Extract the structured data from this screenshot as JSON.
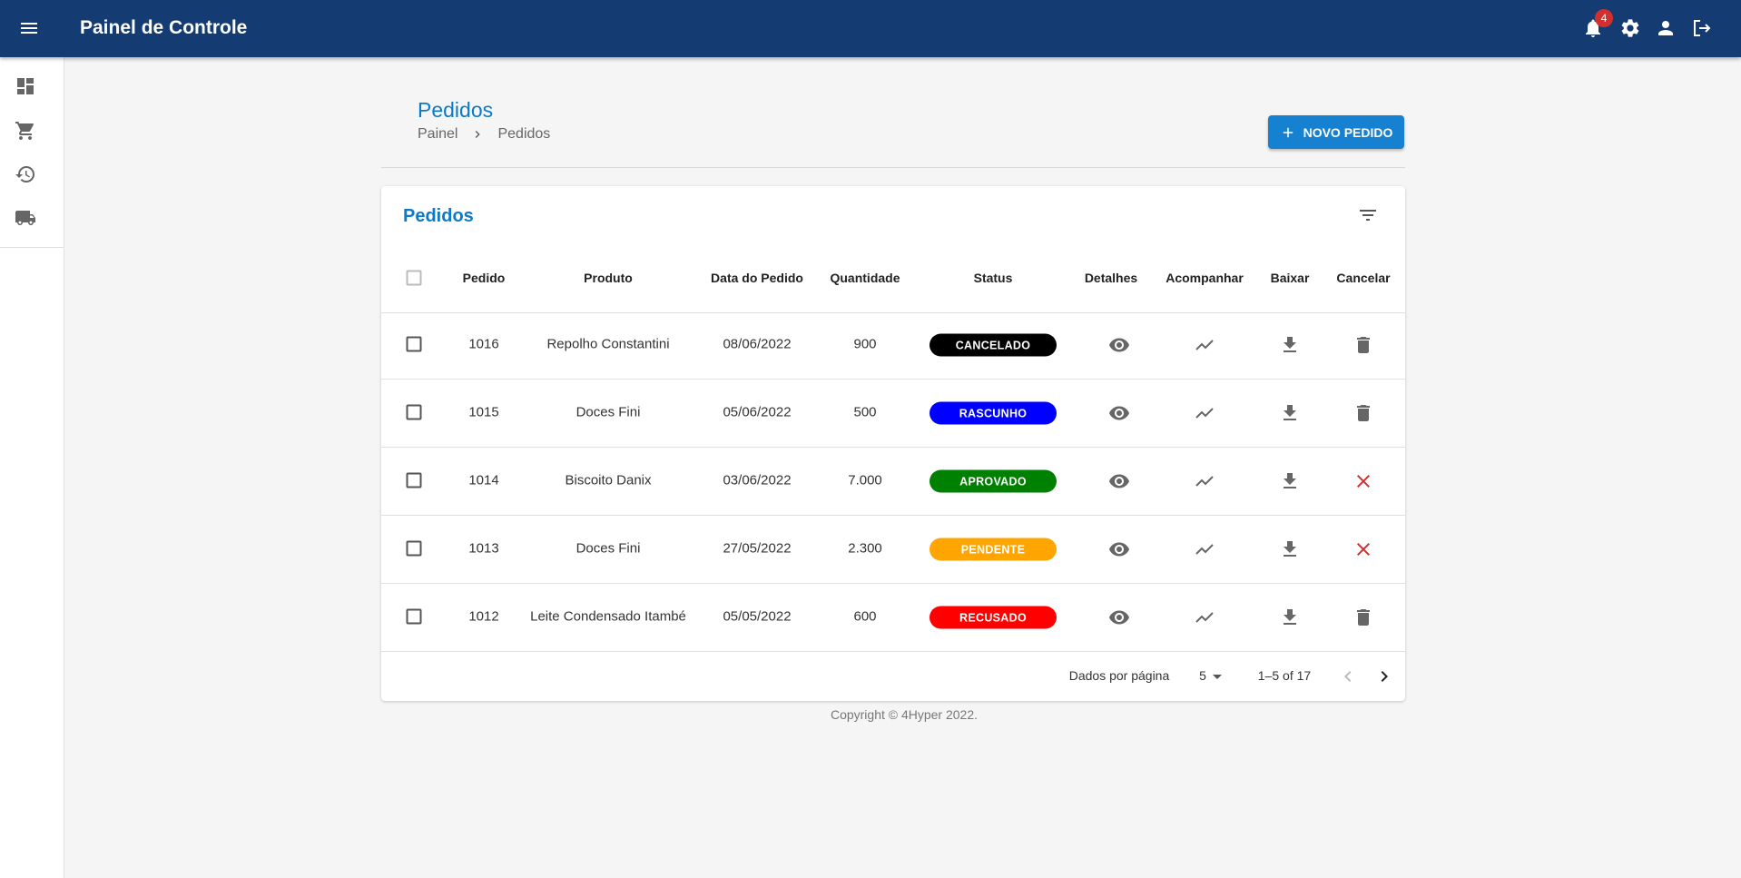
{
  "header": {
    "title": "Painel de Controle",
    "notification_count": "4"
  },
  "page": {
    "title": "Pedidos",
    "breadcrumb": [
      "Painel",
      "Pedidos"
    ],
    "button": "NOVO PEDIDO"
  },
  "table": {
    "title": "Pedidos",
    "columns": [
      "Pedido",
      "Produto",
      "Data do Pedido",
      "Quantidade",
      "Status",
      "Detalhes",
      "Acompanhar",
      "Baixar",
      "Cancelar"
    ],
    "rows": [
      {
        "pedido": "1016",
        "produto": "Repolho Constantini",
        "data": "08/06/2022",
        "quantidade": "900",
        "status": "CANCELADO",
        "status_color": "#000000",
        "cancel_icon": "trash"
      },
      {
        "pedido": "1015",
        "produto": "Doces Fini",
        "data": "05/06/2022",
        "quantidade": "500",
        "status": "RASCUNHO",
        "status_color": "#0000ff",
        "cancel_icon": "trash"
      },
      {
        "pedido": "1014",
        "produto": "Biscoito Danix",
        "data": "03/06/2022",
        "quantidade": "7.000",
        "status": "APROVADO",
        "status_color": "#008000",
        "cancel_icon": "x"
      },
      {
        "pedido": "1013",
        "produto": "Doces Fini",
        "data": "27/05/2022",
        "quantidade": "2.300",
        "status": "PENDENTE",
        "status_color": "#ffa500",
        "cancel_icon": "x"
      },
      {
        "pedido": "1012",
        "produto": "Leite Condensado Itambé",
        "data": "05/05/2022",
        "quantidade": "600",
        "status": "RECUSADO",
        "status_color": "#ff0000",
        "cancel_icon": "trash"
      }
    ],
    "pagination": {
      "rows_label": "Dados por página",
      "rows_per_page": "5",
      "range": "1–5 of 17"
    }
  },
  "footer": "Copyright © 4Hyper 2022."
}
